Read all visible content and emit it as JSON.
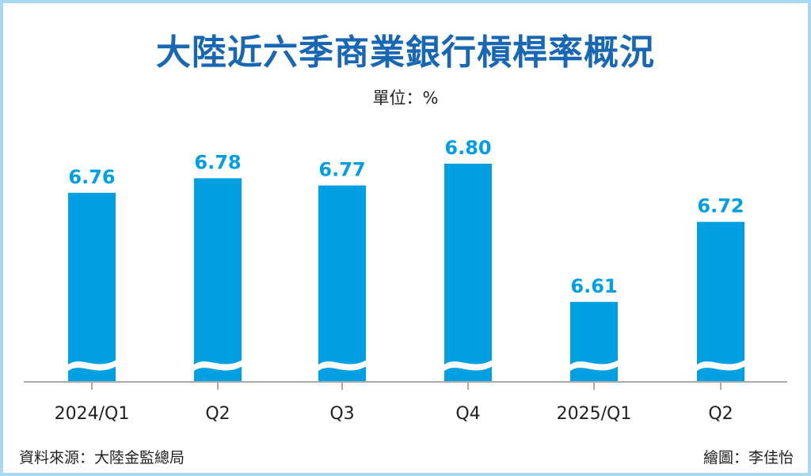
{
  "chart_data": {
    "type": "bar",
    "title": "大陸近六季商業銀行槓桿率概況",
    "unit": "單位：%",
    "categories": [
      "2024/Q1",
      "Q2",
      "Q3",
      "Q4",
      "2025/Q1",
      "Q2"
    ],
    "values": [
      6.76,
      6.78,
      6.77,
      6.8,
      6.61,
      6.72
    ],
    "data_labels": [
      "6.76",
      "6.78",
      "6.77",
      "6.80",
      "6.61",
      "6.72"
    ],
    "axis_break": true,
    "ylim": [
      6.5,
      6.85
    ],
    "grid": false,
    "colors": {
      "bar": "#00a0e3",
      "label": "#00a0e3",
      "title": "#1767b5",
      "border": "#a9d9f1"
    }
  },
  "footer": {
    "source": "資料來源：大陸金監總局",
    "credit": "繪圖：李佳怡"
  }
}
